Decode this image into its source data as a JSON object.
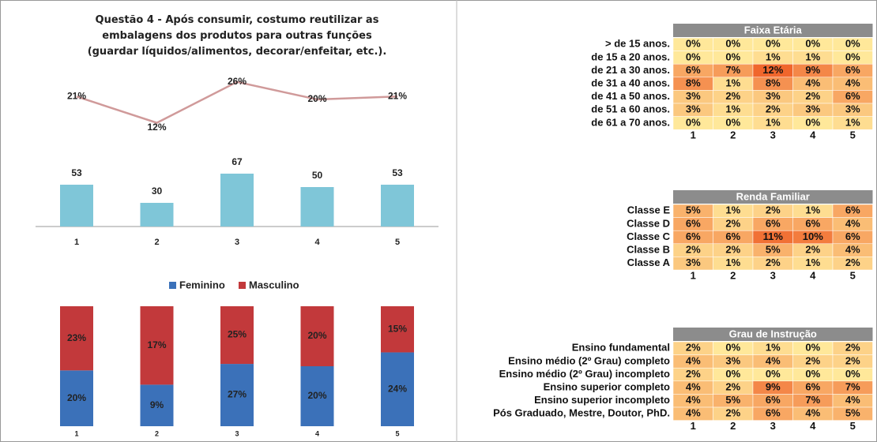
{
  "chart_data": [
    {
      "type": "line",
      "title": "Questão 4 - Após consumir, costumo reutilizar as embalagens dos produtos para outras funções (guardar líquidos/alimentos, decorar/enfeitar, etc.).",
      "categories": [
        "1",
        "2",
        "3",
        "4",
        "5"
      ],
      "values": [
        21,
        12,
        26,
        20,
        21
      ],
      "value_labels": [
        "21%",
        "12%",
        "26%",
        "20%",
        "21%"
      ],
      "color": "#d09a9a"
    },
    {
      "type": "bar",
      "categories": [
        "1",
        "2",
        "3",
        "4",
        "5"
      ],
      "values": [
        53,
        30,
        67,
        50,
        53
      ],
      "color": "#7fc6d8"
    },
    {
      "type": "stacked_percent_bar",
      "categories": [
        "1",
        "2",
        "3",
        "4",
        "5"
      ],
      "series": [
        {
          "name": "Feminino",
          "color": "#3b71b9",
          "values": [
            20,
            9,
            27,
            20,
            24
          ],
          "value_labels": [
            "20%",
            "9%",
            "27%",
            "20%",
            "24%"
          ]
        },
        {
          "name": "Masculino",
          "color": "#c2393b",
          "values": [
            23,
            17,
            25,
            20,
            15
          ],
          "value_labels": [
            "23%",
            "17%",
            "25%",
            "20%",
            "15%"
          ]
        }
      ]
    }
  ],
  "tables": [
    {
      "type": "heatmap",
      "title": "Faixa Etária",
      "columns": [
        "1",
        "2",
        "3",
        "4",
        "5"
      ],
      "rows": [
        "> de 15 anos.",
        "de 15 a 20 anos.",
        "de 21 a 30 anos.",
        "de 31 a 40 anos.",
        "de 41 a 50 anos.",
        "de 51 a 60 anos.",
        "de 61 a 70 anos."
      ],
      "values": [
        [
          0,
          0,
          0,
          0,
          0
        ],
        [
          0,
          0,
          1,
          1,
          0
        ],
        [
          6,
          7,
          12,
          9,
          6
        ],
        [
          8,
          1,
          8,
          4,
          4
        ],
        [
          3,
          2,
          3,
          2,
          6
        ],
        [
          3,
          1,
          2,
          3,
          3
        ],
        [
          0,
          0,
          1,
          0,
          1
        ]
      ],
      "value_labels": [
        [
          "0%",
          "0%",
          "0%",
          "0%",
          "0%"
        ],
        [
          "0%",
          "0%",
          "1%",
          "1%",
          "0%"
        ],
        [
          "6%",
          "7%",
          "12%",
          "9%",
          "6%"
        ],
        [
          "8%",
          "1%",
          "8%",
          "4%",
          "4%"
        ],
        [
          "3%",
          "2%",
          "3%",
          "2%",
          "6%"
        ],
        [
          "3%",
          "1%",
          "2%",
          "3%",
          "3%"
        ],
        [
          "0%",
          "0%",
          "1%",
          "0%",
          "1%"
        ]
      ]
    },
    {
      "type": "heatmap",
      "title": "Renda Familiar",
      "columns": [
        "1",
        "2",
        "3",
        "4",
        "5"
      ],
      "rows": [
        "Classe E",
        "Classe D",
        "Classe C",
        "Classe B",
        "Classe A"
      ],
      "values": [
        [
          5,
          1,
          2,
          1,
          6
        ],
        [
          6,
          2,
          6,
          6,
          4
        ],
        [
          6,
          6,
          11,
          10,
          6
        ],
        [
          2,
          2,
          5,
          2,
          4
        ],
        [
          3,
          1,
          2,
          1,
          2
        ]
      ],
      "value_labels": [
        [
          "5%",
          "1%",
          "2%",
          "1%",
          "6%"
        ],
        [
          "6%",
          "2%",
          "6%",
          "6%",
          "4%"
        ],
        [
          "6%",
          "6%",
          "11%",
          "10%",
          "6%"
        ],
        [
          "2%",
          "2%",
          "5%",
          "2%",
          "4%"
        ],
        [
          "3%",
          "1%",
          "2%",
          "1%",
          "2%"
        ]
      ]
    },
    {
      "type": "heatmap",
      "title": "Grau de Instrução",
      "columns": [
        "1",
        "2",
        "3",
        "4",
        "5"
      ],
      "rows": [
        "Ensino fundamental",
        "Ensino médio (2º Grau) completo",
        "Ensino médio (2º Grau) incompleto",
        "Ensino superior completo",
        "Ensino superior incompleto",
        "Pós Graduado, Mestre, Doutor, PhD."
      ],
      "values": [
        [
          2,
          0,
          1,
          0,
          2
        ],
        [
          4,
          3,
          4,
          2,
          2
        ],
        [
          2,
          0,
          0,
          0,
          0
        ],
        [
          4,
          2,
          9,
          6,
          7
        ],
        [
          4,
          5,
          6,
          7,
          4
        ],
        [
          4,
          2,
          6,
          4,
          5
        ]
      ],
      "value_labels": [
        [
          "2%",
          "0%",
          "1%",
          "0%",
          "2%"
        ],
        [
          "4%",
          "3%",
          "4%",
          "2%",
          "2%"
        ],
        [
          "2%",
          "0%",
          "0%",
          "0%",
          "0%"
        ],
        [
          "4%",
          "2%",
          "9%",
          "6%",
          "7%"
        ],
        [
          "4%",
          "5%",
          "6%",
          "7%",
          "4%"
        ],
        [
          "4%",
          "2%",
          "6%",
          "4%",
          "5%"
        ]
      ]
    }
  ]
}
